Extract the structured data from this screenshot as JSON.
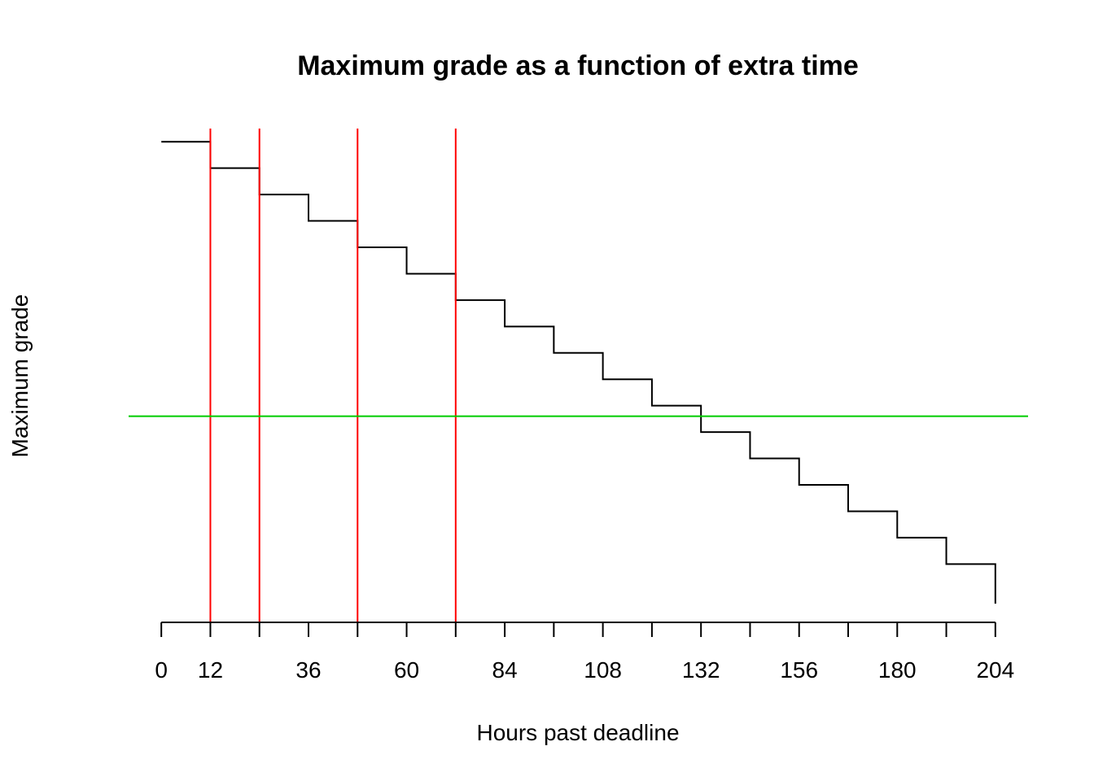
{
  "chart_data": {
    "type": "line",
    "title": "Maximum grade as a function of extra time",
    "xlabel": "Hours past deadline",
    "ylabel": "Maximum grade",
    "xlim": [
      -8,
      212
    ],
    "ylim": [
      -0.5,
      17.5
    ],
    "x_ticks": [
      0,
      12,
      24,
      36,
      48,
      60,
      72,
      84,
      96,
      108,
      120,
      132,
      144,
      156,
      168,
      180,
      192,
      204
    ],
    "x_tick_labels": [
      "0",
      "12",
      "",
      "36",
      "",
      "60",
      "",
      "84",
      "",
      "108",
      "",
      "132",
      "",
      "156",
      "",
      "180",
      "",
      "204"
    ],
    "y_axis_shown": false,
    "series": [
      {
        "style": "step",
        "color": "#000000",
        "x": [
          0,
          12,
          24,
          36,
          48,
          60,
          72,
          84,
          96,
          108,
          120,
          132,
          144,
          156,
          168,
          180,
          192,
          204
        ],
        "y": [
          17,
          16,
          15,
          14,
          13,
          12,
          11,
          10,
          9,
          8,
          7,
          6,
          5,
          4,
          3,
          2,
          1,
          0
        ]
      }
    ],
    "vertical_lines": {
      "color": "#ff0000",
      "x": [
        12,
        24,
        48,
        72
      ]
    },
    "horizontable_lines": null,
    "horizontal_lines": {
      "color": "#00cc00",
      "y": [
        6.6
      ]
    }
  }
}
